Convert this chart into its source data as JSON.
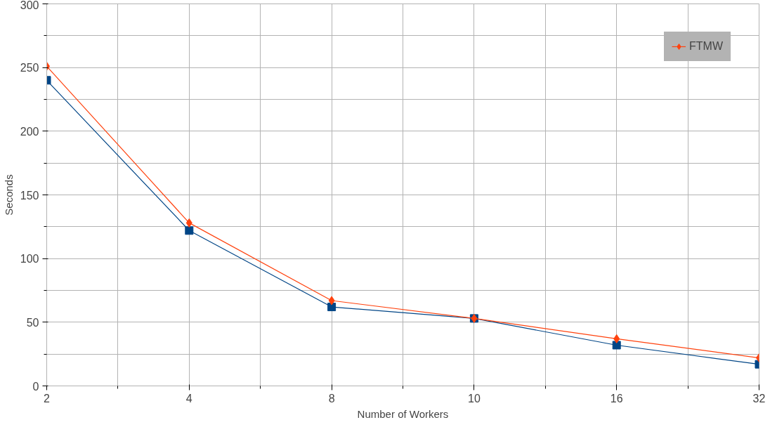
{
  "chart_data": {
    "type": "line",
    "xlabel": "Number of Workers",
    "ylabel": "Seconds",
    "categories": [
      "2",
      "4",
      "8",
      "10",
      "16",
      "32"
    ],
    "ylim": [
      0,
      300
    ],
    "yticks": [
      0,
      50,
      100,
      150,
      200,
      250,
      300
    ],
    "grid": true,
    "legend": "top right",
    "series": [
      {
        "color": "#004586",
        "marker": "square",
        "values": [
          240,
          122,
          62,
          53,
          32,
          17
        ]
      },
      {
        "name": "FTMW",
        "color": "#ff420e",
        "marker": "diamond",
        "values": [
          251,
          128,
          67,
          53,
          37,
          22
        ]
      }
    ]
  }
}
